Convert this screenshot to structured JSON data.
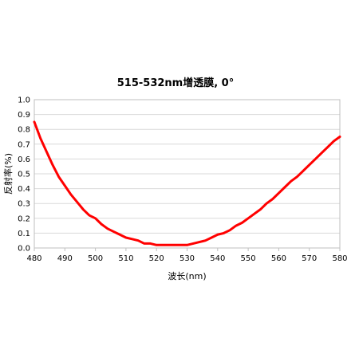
{
  "chart_data": {
    "type": "line",
    "title": "515-532nm增透膜, 0°",
    "xlabel": "波长(nm)",
    "ylabel": "反射率(%)",
    "xlim": [
      480,
      580
    ],
    "ylim": [
      0,
      1.0
    ],
    "x_ticks": [
      "480",
      "490",
      "500",
      "510",
      "520",
      "530",
      "540",
      "550",
      "560",
      "570",
      "580"
    ],
    "y_ticks": [
      "0.0",
      "0.1",
      "0.2",
      "0.3",
      "0.4",
      "0.5",
      "0.6",
      "0.7",
      "0.8",
      "0.9",
      "1.0"
    ],
    "grid": true,
    "legend": "none",
    "series": [
      {
        "color": "#ff0000",
        "x": [
          480,
          482,
          484,
          486,
          488,
          490,
          492,
          494,
          496,
          498,
          500,
          502,
          504,
          506,
          508,
          510,
          512,
          514,
          516,
          518,
          520,
          522,
          524,
          526,
          528,
          530,
          532,
          534,
          536,
          538,
          540,
          542,
          544,
          546,
          548,
          550,
          552,
          554,
          556,
          558,
          560,
          562,
          564,
          566,
          568,
          570,
          572,
          574,
          576,
          578,
          580
        ],
        "y": [
          0.85,
          0.74,
          0.65,
          0.56,
          0.48,
          0.42,
          0.36,
          0.31,
          0.26,
          0.22,
          0.2,
          0.16,
          0.13,
          0.11,
          0.09,
          0.07,
          0.06,
          0.05,
          0.03,
          0.03,
          0.02,
          0.02,
          0.02,
          0.02,
          0.02,
          0.02,
          0.03,
          0.04,
          0.05,
          0.07,
          0.09,
          0.1,
          0.12,
          0.15,
          0.17,
          0.2,
          0.23,
          0.26,
          0.3,
          0.33,
          0.37,
          0.41,
          0.45,
          0.48,
          0.52,
          0.56,
          0.6,
          0.64,
          0.68,
          0.72,
          0.75
        ]
      }
    ]
  }
}
